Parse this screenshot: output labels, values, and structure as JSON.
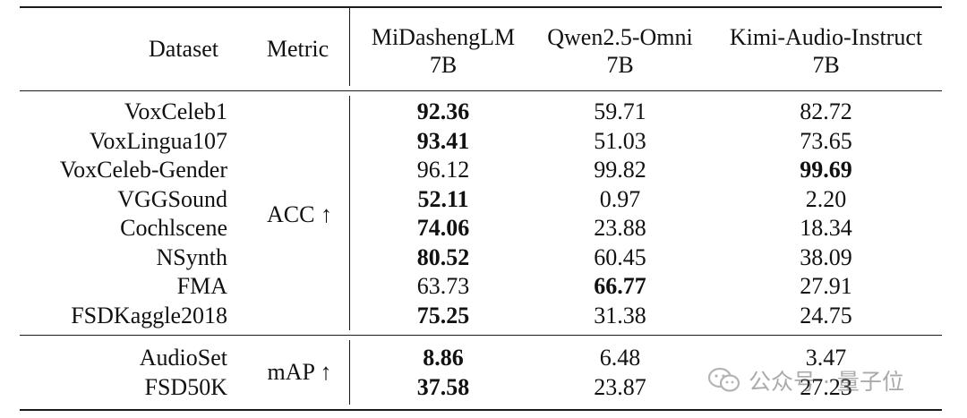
{
  "table": {
    "header": {
      "dataset": "Dataset",
      "metric": "Metric",
      "col1": {
        "name": "MiDashengLM",
        "size": "7B"
      },
      "col2": {
        "name": "Qwen2.5-Omni",
        "size": "7B"
      },
      "col3": {
        "name": "Kimi-Audio-Instruct",
        "size": "7B"
      }
    },
    "group1": {
      "metric": "ACC ↑",
      "rows": [
        {
          "dataset": "VoxCeleb1",
          "v1": "92.36",
          "v2": "59.71",
          "v3": "82.72"
        },
        {
          "dataset": "VoxLingua107",
          "v1": "93.41",
          "v2": "51.03",
          "v3": "73.65"
        },
        {
          "dataset": "VoxCeleb-Gender",
          "v1": "96.12",
          "v2": "99.82",
          "v3": "99.69"
        },
        {
          "dataset": "VGGSound",
          "v1": "52.11",
          "v2": "0.97",
          "v3": "2.20"
        },
        {
          "dataset": "Cochlscene",
          "v1": "74.06",
          "v2": "23.88",
          "v3": "18.34"
        },
        {
          "dataset": "NSynth",
          "v1": "80.52",
          "v2": "60.45",
          "v3": "38.09"
        },
        {
          "dataset": "FMA",
          "v1": "63.73",
          "v2": "66.77",
          "v3": "27.91"
        },
        {
          "dataset": "FSDKaggle2018",
          "v1": "75.25",
          "v2": "31.38",
          "v3": "24.75"
        }
      ]
    },
    "group2": {
      "metric": "mAP ↑",
      "rows": [
        {
          "dataset": "AudioSet",
          "v1": "8.86",
          "v2": "6.48",
          "v3": "3.47"
        },
        {
          "dataset": "FSD50K",
          "v1": "37.58",
          "v2": "23.87",
          "v3": "27.23"
        }
      ]
    }
  },
  "watermark": {
    "text": "公众号 · 量子位",
    "icon": "wechat-icon"
  }
}
